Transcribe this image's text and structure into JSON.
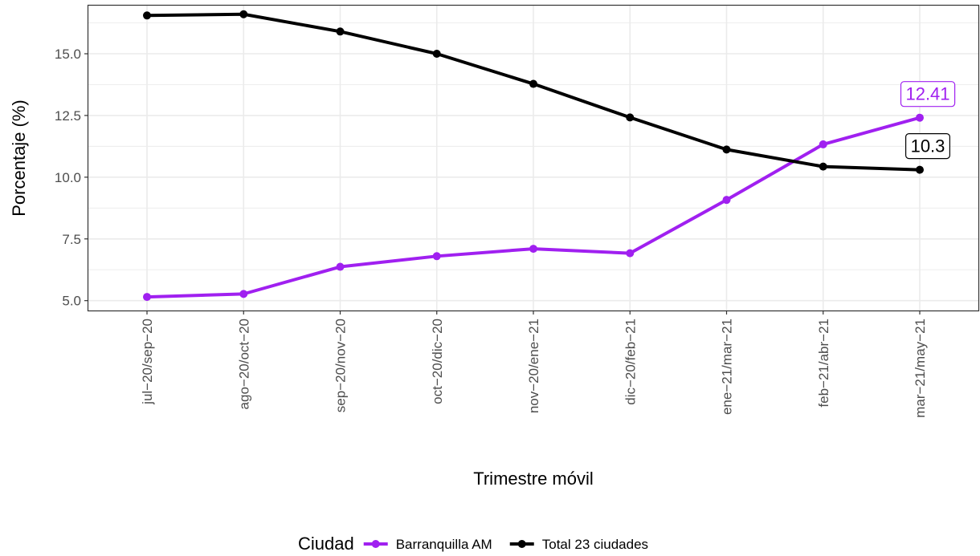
{
  "chart_data": {
    "type": "line",
    "xlabel": "Trimestre móvil",
    "ylabel": "Porcentaje (%)",
    "categories": [
      "jul−20/sep−20",
      "ago−20/oct−20",
      "sep−20/nov−20",
      "oct−20/dic−20",
      "nov−20/ene−21",
      "dic−20/feb−21",
      "ene−21/mar−21",
      "feb−21/abr−21",
      "mar−21/may−21"
    ],
    "ylim": [
      4.6,
      16.95
    ],
    "yticks": [
      5.0,
      7.5,
      10.0,
      12.5,
      15.0
    ],
    "ytick_labels": [
      "5.0",
      "7.5",
      "10.0",
      "12.5",
      "15.0"
    ],
    "grid": true,
    "legend": {
      "title": "Ciudad",
      "position": "bottom"
    },
    "series": [
      {
        "name": "Barranquilla AM",
        "color": "#a020f0",
        "values": [
          5.15,
          5.27,
          6.37,
          6.8,
          7.1,
          6.92,
          9.08,
          11.33,
          12.41
        ],
        "end_label": "12.41"
      },
      {
        "name": "Total 23 ciudades",
        "color": "#000000",
        "values": [
          16.55,
          16.6,
          15.9,
          15.0,
          13.78,
          12.42,
          11.12,
          10.43,
          10.3
        ],
        "end_label": "10.3"
      }
    ]
  }
}
